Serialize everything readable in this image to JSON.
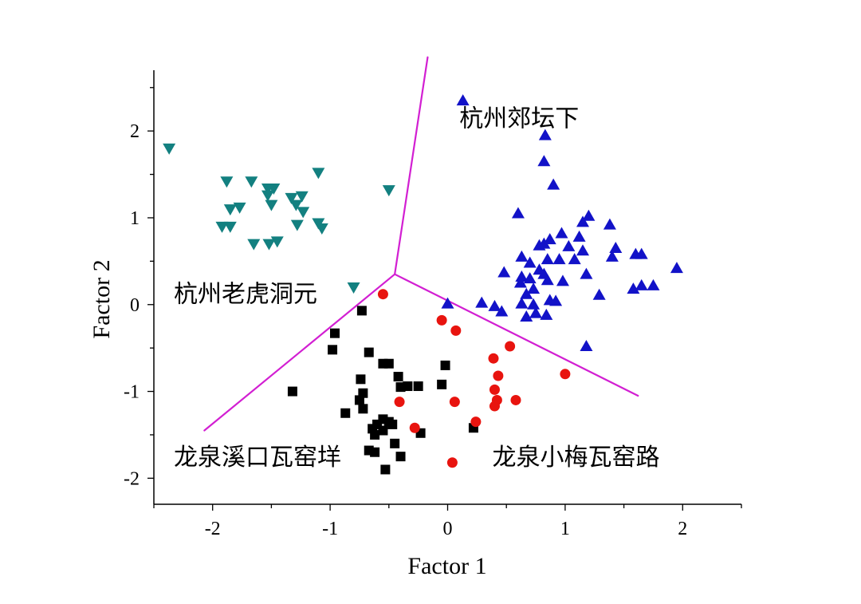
{
  "chart_data": {
    "type": "scatter",
    "title": "",
    "xlabel": "Factor 1",
    "ylabel": "Factor 2",
    "xlim": [
      -2.5,
      2.5
    ],
    "ylim": [
      -2.3,
      2.7
    ],
    "xticks": [
      -2,
      -1,
      0,
      1,
      2
    ],
    "yticks": [
      -2,
      -1,
      0,
      1,
      2
    ],
    "xtick_labels": [
      "-2",
      "-1",
      "0",
      "1",
      "2"
    ],
    "ytick_labels": [
      "-2",
      "-1",
      "0",
      "1",
      "2"
    ],
    "grid": false,
    "legend": "none",
    "region_labels": [
      {
        "text": "杭州郊坛下",
        "x": 0.1,
        "y": 2.05
      },
      {
        "text": "杭州老虎洞元",
        "x": -2.33,
        "y": 0.03
      },
      {
        "text": "龙泉溪口瓦窑垟",
        "x": -2.33,
        "y": -1.85
      },
      {
        "text": "龙泉小梅瓦窑路",
        "x": 0.38,
        "y": -1.85
      }
    ],
    "boundaries": {
      "color": "#d21fd2",
      "center": [
        -0.45,
        0.35
      ],
      "ends": [
        [
          -0.17,
          2.85
        ],
        [
          1.62,
          -1.05
        ],
        [
          -2.07,
          -1.45
        ]
      ]
    },
    "series": [
      {
        "marker": "triangle-up",
        "color": "#1212c8",
        "points": [
          [
            0.13,
            2.35
          ],
          [
            0.83,
            1.95
          ],
          [
            0.82,
            1.65
          ],
          [
            0.9,
            1.38
          ],
          [
            0.6,
            1.05
          ],
          [
            1.2,
            1.02
          ],
          [
            1.15,
            0.95
          ],
          [
            1.38,
            0.92
          ],
          [
            0.97,
            0.82
          ],
          [
            0.87,
            0.75
          ],
          [
            0.82,
            0.7
          ],
          [
            1.12,
            0.78
          ],
          [
            0.78,
            0.68
          ],
          [
            1.03,
            0.67
          ],
          [
            1.15,
            0.62
          ],
          [
            1.43,
            0.65
          ],
          [
            1.6,
            0.58
          ],
          [
            1.65,
            0.58
          ],
          [
            0.63,
            0.55
          ],
          [
            0.85,
            0.52
          ],
          [
            0.95,
            0.52
          ],
          [
            1.08,
            0.52
          ],
          [
            0.7,
            0.48
          ],
          [
            1.4,
            0.55
          ],
          [
            0.48,
            0.37
          ],
          [
            0.78,
            0.4
          ],
          [
            0.63,
            0.32
          ],
          [
            0.82,
            0.35
          ],
          [
            0.62,
            0.25
          ],
          [
            0.7,
            0.3
          ],
          [
            0.85,
            0.28
          ],
          [
            0.98,
            0.27
          ],
          [
            1.18,
            0.35
          ],
          [
            1.95,
            0.42
          ],
          [
            1.58,
            0.18
          ],
          [
            1.65,
            0.22
          ],
          [
            1.75,
            0.22
          ],
          [
            0.73,
            0.18
          ],
          [
            0.67,
            0.12
          ],
          [
            0.87,
            0.05
          ],
          [
            1.29,
            0.11
          ],
          [
            0.29,
            0.02
          ],
          [
            0.4,
            -0.02
          ],
          [
            0.63,
            0.01
          ],
          [
            0.73,
            0.0
          ],
          [
            0.92,
            0.04
          ],
          [
            0.46,
            -0.08
          ],
          [
            0.75,
            -0.1
          ],
          [
            0.67,
            -0.14
          ],
          [
            0.84,
            -0.12
          ],
          [
            0.0,
            0.01
          ],
          [
            1.18,
            -0.48
          ]
        ]
      },
      {
        "marker": "triangle-down",
        "color": "#138080",
        "points": [
          [
            -2.37,
            1.8
          ],
          [
            -1.88,
            1.42
          ],
          [
            -1.67,
            1.42
          ],
          [
            -1.53,
            1.34
          ],
          [
            -1.48,
            1.34
          ],
          [
            -1.1,
            1.52
          ],
          [
            -1.53,
            1.26
          ],
          [
            -1.77,
            1.12
          ],
          [
            -1.85,
            1.1
          ],
          [
            -1.5,
            1.15
          ],
          [
            -1.33,
            1.23
          ],
          [
            -1.24,
            1.25
          ],
          [
            -1.29,
            1.15
          ],
          [
            -1.23,
            1.07
          ],
          [
            -1.1,
            0.94
          ],
          [
            -1.07,
            0.88
          ],
          [
            -1.85,
            0.9
          ],
          [
            -1.92,
            0.9
          ],
          [
            -1.28,
            0.92
          ],
          [
            -1.45,
            0.73
          ],
          [
            -1.65,
            0.7
          ],
          [
            -1.52,
            0.7
          ],
          [
            -0.5,
            1.32
          ],
          [
            -0.8,
            0.2
          ]
        ]
      },
      {
        "marker": "square",
        "color": "#000000",
        "points": [
          [
            -0.73,
            -0.07
          ],
          [
            -0.96,
            -0.33
          ],
          [
            -0.98,
            -0.52
          ],
          [
            -0.67,
            -0.55
          ],
          [
            -0.55,
            -0.68
          ],
          [
            -0.5,
            -0.68
          ],
          [
            -0.42,
            -0.83
          ],
          [
            -0.74,
            -0.86
          ],
          [
            -0.72,
            -1.02
          ],
          [
            -0.34,
            -0.94
          ],
          [
            -0.25,
            -0.94
          ],
          [
            -0.05,
            -0.92
          ],
          [
            -0.02,
            -0.7
          ],
          [
            -1.32,
            -1.0
          ],
          [
            -0.4,
            -0.95
          ],
          [
            -0.75,
            -1.1
          ],
          [
            -0.72,
            -1.2
          ],
          [
            -0.87,
            -1.25
          ],
          [
            -0.55,
            -1.32
          ],
          [
            -0.5,
            -1.35
          ],
          [
            -0.47,
            -1.38
          ],
          [
            -0.6,
            -1.38
          ],
          [
            -0.64,
            -1.43
          ],
          [
            -0.55,
            -1.45
          ],
          [
            -0.62,
            -1.5
          ],
          [
            -0.23,
            -1.48
          ],
          [
            -0.45,
            -1.6
          ],
          [
            -0.67,
            -1.68
          ],
          [
            -0.62,
            -1.7
          ],
          [
            -0.4,
            -1.75
          ],
          [
            -0.53,
            -1.9
          ],
          [
            0.22,
            -1.42
          ]
        ]
      },
      {
        "marker": "circle",
        "color": "#e8140f",
        "points": [
          [
            -0.55,
            0.12
          ],
          [
            -0.05,
            -0.18
          ],
          [
            0.07,
            -0.3
          ],
          [
            0.53,
            -0.48
          ],
          [
            0.39,
            -0.62
          ],
          [
            0.43,
            -0.82
          ],
          [
            1.0,
            -0.8
          ],
          [
            0.4,
            -0.98
          ],
          [
            0.42,
            -1.1
          ],
          [
            0.58,
            -1.1
          ],
          [
            0.06,
            -1.12
          ],
          [
            0.4,
            -1.17
          ],
          [
            -0.41,
            -1.12
          ],
          [
            0.24,
            -1.35
          ],
          [
            -0.28,
            -1.42
          ],
          [
            0.04,
            -1.82
          ]
        ]
      }
    ]
  }
}
